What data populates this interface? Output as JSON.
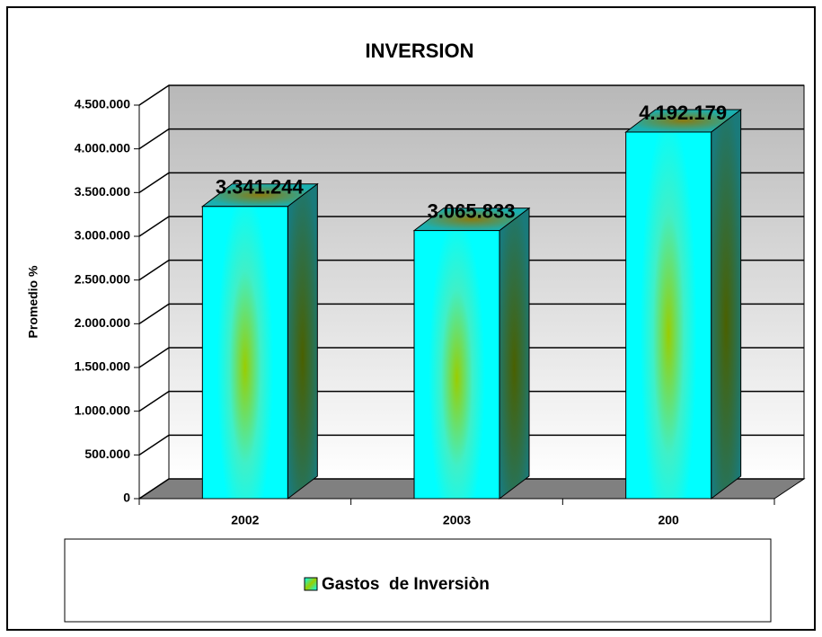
{
  "chart_data": {
    "type": "bar3d",
    "title": "INVERSION",
    "y_label": "Promedio %",
    "categories": [
      "2002",
      "2003",
      "200"
    ],
    "series": [
      {
        "name": "Gastos  de Inversiòn",
        "color": "#00ffff",
        "values": [
          3341244,
          3065833,
          4192179
        ],
        "value_labels": [
          "3.341.244",
          "3.065.833",
          "4.192.179"
        ]
      }
    ],
    "ylim": [
      0,
      4500000
    ],
    "yticks": [
      0,
      {
        "value": 500000,
        "label": "500.000"
      },
      {
        "value": 1000000,
        "label": "1.000.000"
      },
      {
        "value": 1500000,
        "label": "1.500.000"
      },
      {
        "value": 2000000,
        "label": "2.000.000"
      },
      {
        "value": 2500000,
        "label": "2.500.000"
      },
      {
        "value": 3000000,
        "label": "3.000.000"
      },
      {
        "value": 3500000,
        "label": "3.500.000"
      },
      {
        "value": 4000000,
        "label": "4.000.000"
      },
      {
        "value": 4500000,
        "label": "4.500.000"
      }
    ],
    "grid": true
  }
}
